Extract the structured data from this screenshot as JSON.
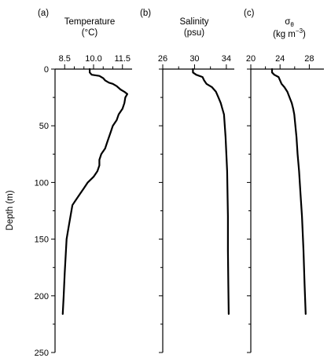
{
  "chart_data": {
    "type": "line",
    "y_axis": {
      "label": "Depth (m)",
      "range": [
        0,
        250
      ],
      "inverted": true,
      "ticks": [
        0,
        50,
        100,
        150,
        200,
        250
      ]
    },
    "panels": [
      {
        "tag": "(a)",
        "title_line1": "Temperature",
        "title_line2": "(°C)",
        "xlim": [
          8.0,
          12.0
        ],
        "xticks": [
          {
            "value": 8.5,
            "label": "8.5"
          },
          {
            "value": 10.0,
            "label": "10.0"
          },
          {
            "value": 11.5,
            "label": "11.5"
          }
        ],
        "minor_xticks": [
          9.0,
          9.5,
          10.5,
          11.0
        ],
        "points": [
          {
            "x": 9.8,
            "depth": 0
          },
          {
            "x": 9.8,
            "depth": 3
          },
          {
            "x": 9.9,
            "depth": 5
          },
          {
            "x": 10.3,
            "depth": 6
          },
          {
            "x": 10.5,
            "depth": 8
          },
          {
            "x": 10.6,
            "depth": 10
          },
          {
            "x": 10.8,
            "depth": 12
          },
          {
            "x": 11.0,
            "depth": 13
          },
          {
            "x": 11.2,
            "depth": 15
          },
          {
            "x": 11.4,
            "depth": 18
          },
          {
            "x": 11.6,
            "depth": 20
          },
          {
            "x": 11.75,
            "depth": 22
          },
          {
            "x": 11.65,
            "depth": 25
          },
          {
            "x": 11.6,
            "depth": 30
          },
          {
            "x": 11.5,
            "depth": 35
          },
          {
            "x": 11.3,
            "depth": 40
          },
          {
            "x": 11.2,
            "depth": 45
          },
          {
            "x": 11.0,
            "depth": 50
          },
          {
            "x": 10.9,
            "depth": 55
          },
          {
            "x": 10.8,
            "depth": 60
          },
          {
            "x": 10.7,
            "depth": 65
          },
          {
            "x": 10.6,
            "depth": 70
          },
          {
            "x": 10.4,
            "depth": 75
          },
          {
            "x": 10.3,
            "depth": 80
          },
          {
            "x": 10.3,
            "depth": 85
          },
          {
            "x": 10.2,
            "depth": 90
          },
          {
            "x": 10.0,
            "depth": 95
          },
          {
            "x": 9.7,
            "depth": 100
          },
          {
            "x": 9.5,
            "depth": 105
          },
          {
            "x": 9.3,
            "depth": 110
          },
          {
            "x": 9.1,
            "depth": 115
          },
          {
            "x": 8.9,
            "depth": 120
          },
          {
            "x": 8.8,
            "depth": 130
          },
          {
            "x": 8.7,
            "depth": 140
          },
          {
            "x": 8.6,
            "depth": 150
          },
          {
            "x": 8.55,
            "depth": 165
          },
          {
            "x": 8.5,
            "depth": 180
          },
          {
            "x": 8.45,
            "depth": 200
          },
          {
            "x": 8.4,
            "depth": 216
          }
        ]
      },
      {
        "tag": "(b)",
        "title_line1": "Salinity",
        "title_line2": "(psu)",
        "xlim": [
          26,
          35
        ],
        "xticks": [
          {
            "value": 26,
            "label": "26"
          },
          {
            "value": 30,
            "label": "30"
          },
          {
            "value": 34,
            "label": "34"
          }
        ],
        "minor_xticks": [
          28,
          32
        ],
        "points": [
          {
            "x": 29.8,
            "depth": 0
          },
          {
            "x": 29.8,
            "depth": 3
          },
          {
            "x": 30.2,
            "depth": 5
          },
          {
            "x": 31.0,
            "depth": 7
          },
          {
            "x": 31.2,
            "depth": 10
          },
          {
            "x": 31.5,
            "depth": 13
          },
          {
            "x": 32.2,
            "depth": 16
          },
          {
            "x": 32.7,
            "depth": 20
          },
          {
            "x": 33.0,
            "depth": 25
          },
          {
            "x": 33.3,
            "depth": 30
          },
          {
            "x": 33.5,
            "depth": 35
          },
          {
            "x": 33.7,
            "depth": 40
          },
          {
            "x": 33.8,
            "depth": 50
          },
          {
            "x": 33.9,
            "depth": 60
          },
          {
            "x": 34.0,
            "depth": 75
          },
          {
            "x": 34.1,
            "depth": 90
          },
          {
            "x": 34.15,
            "depth": 110
          },
          {
            "x": 34.2,
            "depth": 130
          },
          {
            "x": 34.2,
            "depth": 160
          },
          {
            "x": 34.25,
            "depth": 190
          },
          {
            "x": 34.3,
            "depth": 216
          }
        ]
      },
      {
        "tag": "(c)",
        "title_line1": "σ",
        "title_sub": "θ",
        "title_line2": "(kg m",
        "title_sup": "−3",
        "title_line2_end": ")",
        "xlim": [
          20,
          30
        ],
        "xticks": [
          {
            "value": 20,
            "label": "20"
          },
          {
            "value": 24,
            "label": "24"
          },
          {
            "value": 28,
            "label": "28"
          }
        ],
        "minor_xticks": [
          22,
          26
        ],
        "points": [
          {
            "x": 22.9,
            "depth": 0
          },
          {
            "x": 22.9,
            "depth": 3
          },
          {
            "x": 23.2,
            "depth": 5
          },
          {
            "x": 23.8,
            "depth": 7
          },
          {
            "x": 24.0,
            "depth": 10
          },
          {
            "x": 24.2,
            "depth": 13
          },
          {
            "x": 24.6,
            "depth": 16
          },
          {
            "x": 25.0,
            "depth": 20
          },
          {
            "x": 25.3,
            "depth": 25
          },
          {
            "x": 25.6,
            "depth": 30
          },
          {
            "x": 25.8,
            "depth": 35
          },
          {
            "x": 25.95,
            "depth": 40
          },
          {
            "x": 26.1,
            "depth": 50
          },
          {
            "x": 26.25,
            "depth": 60
          },
          {
            "x": 26.4,
            "depth": 75
          },
          {
            "x": 26.6,
            "depth": 90
          },
          {
            "x": 26.8,
            "depth": 110
          },
          {
            "x": 27.0,
            "depth": 130
          },
          {
            "x": 27.2,
            "depth": 160
          },
          {
            "x": 27.35,
            "depth": 190
          },
          {
            "x": 27.5,
            "depth": 216
          }
        ]
      }
    ]
  }
}
